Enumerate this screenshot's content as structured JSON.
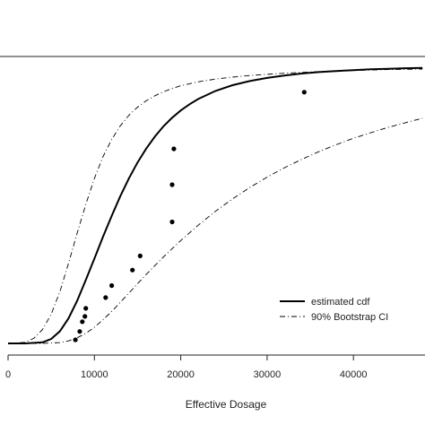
{
  "chart_data": {
    "type": "line",
    "xlabel": "Effective Dosage",
    "ylabel": "",
    "xlim": [
      0,
      48000
    ],
    "ylim": [
      0,
      1
    ],
    "x_ticks": [
      0,
      10000,
      20000,
      30000,
      40000
    ],
    "x_tick_labels": [
      "0",
      "10000",
      "20000",
      "30000",
      "40000"
    ],
    "grid": false,
    "legend_position": "bottom-right",
    "series": [
      {
        "name": "estimated cdf",
        "style": "solid",
        "x": [
          0,
          2000,
          4000,
          5000,
          6000,
          7000,
          8000,
          9000,
          10000,
          11000,
          12000,
          13000,
          14000,
          15000,
          16000,
          17000,
          18000,
          19000,
          20000,
          21000,
          22000,
          24000,
          26000,
          28000,
          30000,
          32000,
          34000,
          36000,
          38000,
          40000,
          42000,
          44000,
          46000,
          48000
        ],
        "y": [
          0,
          0,
          0.004,
          0.016,
          0.044,
          0.09,
          0.153,
          0.228,
          0.305,
          0.384,
          0.459,
          0.53,
          0.594,
          0.651,
          0.701,
          0.744,
          0.781,
          0.812,
          0.838,
          0.86,
          0.879,
          0.908,
          0.929,
          0.944,
          0.955,
          0.964,
          0.971,
          0.976,
          0.98,
          0.983,
          0.986,
          0.988,
          0.99,
          0.991
        ]
      },
      {
        "name": "90% Bootstrap CI",
        "style": "dash-dot",
        "x": [
          0,
          2000,
          3000,
          4000,
          5000,
          6000,
          7000,
          8000,
          9000,
          10000,
          11000,
          12000,
          13000,
          14000,
          15000,
          16000,
          17000,
          18000,
          19000,
          20000,
          22000,
          24000,
          26000,
          28000,
          30000,
          32000,
          36000,
          40000,
          44000,
          48000
        ],
        "y": [
          0,
          0.004,
          0.019,
          0.05,
          0.105,
          0.186,
          0.288,
          0.396,
          0.5,
          0.594,
          0.672,
          0.734,
          0.783,
          0.821,
          0.85,
          0.873,
          0.891,
          0.905,
          0.917,
          0.927,
          0.941,
          0.951,
          0.958,
          0.964,
          0.968,
          0.972,
          0.978,
          0.982,
          0.985,
          0.987
        ]
      },
      {
        "name": "90% Bootstrap CI",
        "style": "dash-dot",
        "x": [
          0,
          4000,
          6000,
          7000,
          8000,
          9000,
          10000,
          11000,
          12000,
          13000,
          14000,
          15000,
          16000,
          17000,
          18000,
          19000,
          20000,
          22000,
          24000,
          26000,
          28000,
          30000,
          32000,
          34000,
          36000,
          38000,
          40000,
          42000,
          44000,
          46000,
          48000
        ],
        "y": [
          0,
          0,
          0.003,
          0.009,
          0.02,
          0.036,
          0.058,
          0.085,
          0.115,
          0.148,
          0.181,
          0.215,
          0.248,
          0.28,
          0.311,
          0.341,
          0.37,
          0.425,
          0.475,
          0.52,
          0.561,
          0.598,
          0.632,
          0.662,
          0.69,
          0.715,
          0.738,
          0.758,
          0.777,
          0.794,
          0.81
        ]
      }
    ],
    "points": {
      "x": [
        7800,
        8300,
        8600,
        8900,
        9000,
        11300,
        12000,
        14400,
        15300,
        19000,
        19000,
        19200,
        34300
      ],
      "y": [
        0.013,
        0.043,
        0.078,
        0.097,
        0.126,
        0.165,
        0.208,
        0.264,
        0.315,
        0.437,
        0.571,
        0.7,
        0.904
      ]
    }
  }
}
